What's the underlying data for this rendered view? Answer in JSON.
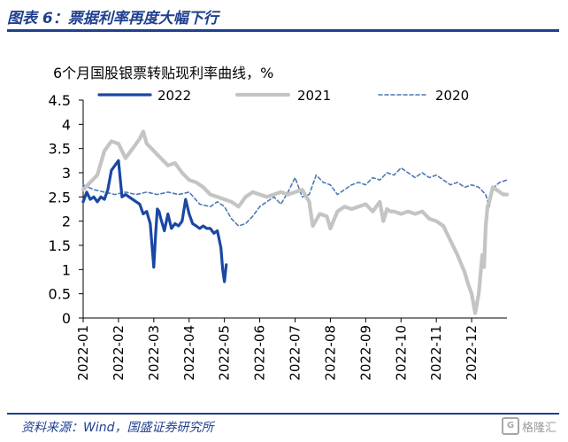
{
  "header": {
    "title": "图表 6：票据利率再度大幅下行"
  },
  "footer": {
    "source": "资料来源：Wind，国盛证券研究所"
  },
  "watermark": {
    "icon": "gelonghui-logo-icon",
    "text": "格隆汇"
  },
  "colors": {
    "s2022": "#1a47a3",
    "s2021": "#c4c4c4",
    "s2020": "#4f78b4",
    "accent": "#1f3f8f"
  },
  "chart_data": {
    "type": "line",
    "ylabel": "6个月国股银票转贴现利率曲线，%",
    "xlabel": "",
    "ylim": [
      0,
      4.5
    ],
    "yticks": [
      "0",
      "0.5",
      "1",
      "1.5",
      "2",
      "2.5",
      "3",
      "3.5",
      "4",
      "4.5"
    ],
    "xlim": [
      0,
      12
    ],
    "xticks": [
      "2022-01",
      "2022-02",
      "2022-03",
      "2022-04",
      "2022-05",
      "2022-06",
      "2022-07",
      "2022-08",
      "2022-09",
      "2022-10",
      "2022-11",
      "2022-12"
    ],
    "legend_position": "top",
    "series": [
      {
        "name": "2022",
        "style": "solid-thick",
        "x": [
          0,
          0.1,
          0.2,
          0.3,
          0.4,
          0.5,
          0.6,
          0.7,
          0.8,
          0.9,
          1.0,
          1.1,
          1.2,
          1.3,
          1.4,
          1.5,
          1.6,
          1.7,
          1.8,
          1.9,
          2.0,
          2.05,
          2.1,
          2.15,
          2.2,
          2.3,
          2.4,
          2.5,
          2.6,
          2.7,
          2.8,
          2.9,
          3.0,
          3.1,
          3.2,
          3.3,
          3.4,
          3.5,
          3.6,
          3.7,
          3.8,
          3.9,
          3.95,
          4.0,
          4.05
        ],
        "values": [
          2.4,
          2.6,
          2.45,
          2.5,
          2.4,
          2.5,
          2.45,
          2.65,
          3.05,
          3.15,
          3.25,
          2.5,
          2.55,
          2.5,
          2.45,
          2.4,
          2.35,
          2.15,
          2.2,
          1.95,
          1.05,
          1.7,
          2.25,
          2.2,
          2.05,
          1.8,
          2.15,
          1.85,
          1.95,
          1.9,
          2.0,
          2.45,
          2.15,
          1.95,
          1.9,
          1.85,
          1.9,
          1.85,
          1.85,
          1.75,
          1.8,
          1.45,
          1.0,
          0.75,
          1.1
        ]
      },
      {
        "name": "2021",
        "style": "solid-light",
        "x": [
          0,
          0.2,
          0.4,
          0.6,
          0.8,
          1.0,
          1.2,
          1.4,
          1.6,
          1.7,
          1.8,
          2.0,
          2.2,
          2.4,
          2.6,
          2.8,
          3.0,
          3.2,
          3.4,
          3.6,
          3.8,
          4.0,
          4.2,
          4.4,
          4.6,
          4.8,
          5.0,
          5.2,
          5.4,
          5.6,
          5.8,
          6.0,
          6.2,
          6.4,
          6.5,
          6.7,
          6.9,
          7.0,
          7.2,
          7.4,
          7.6,
          7.8,
          8.0,
          8.2,
          8.4,
          8.5,
          8.6,
          8.7,
          8.8,
          9.0,
          9.2,
          9.4,
          9.6,
          9.8,
          10.0,
          10.2,
          10.4,
          10.6,
          10.8,
          10.9,
          11.0,
          11.1,
          11.2,
          11.3,
          11.35,
          11.4,
          11.45,
          11.5,
          11.6,
          11.7,
          11.8,
          11.9,
          12.0
        ],
        "values": [
          2.65,
          2.8,
          2.95,
          3.45,
          3.65,
          3.6,
          3.3,
          3.5,
          3.7,
          3.85,
          3.6,
          3.45,
          3.3,
          3.15,
          3.2,
          3.0,
          2.85,
          2.8,
          2.7,
          2.55,
          2.5,
          2.45,
          2.4,
          2.3,
          2.5,
          2.6,
          2.55,
          2.5,
          2.55,
          2.6,
          2.55,
          2.6,
          2.65,
          2.4,
          1.9,
          2.15,
          2.1,
          1.85,
          2.2,
          2.3,
          2.25,
          2.3,
          2.35,
          2.2,
          2.4,
          2.0,
          2.25,
          2.2,
          2.2,
          2.15,
          2.2,
          2.15,
          2.2,
          2.05,
          2.0,
          1.9,
          1.6,
          1.3,
          0.95,
          0.7,
          0.5,
          0.1,
          0.5,
          1.3,
          1.05,
          1.9,
          2.3,
          2.4,
          2.7,
          2.65,
          2.6,
          2.55,
          2.55
        ]
      },
      {
        "name": "2020",
        "style": "dashed",
        "x": [
          0,
          0.3,
          0.6,
          0.9,
          1.2,
          1.5,
          1.8,
          2.1,
          2.4,
          2.7,
          3.0,
          3.3,
          3.6,
          3.8,
          4.0,
          4.2,
          4.4,
          4.6,
          4.8,
          5.0,
          5.2,
          5.4,
          5.6,
          5.8,
          6.0,
          6.2,
          6.4,
          6.6,
          6.8,
          7.0,
          7.2,
          7.4,
          7.6,
          7.8,
          8.0,
          8.2,
          8.4,
          8.6,
          8.8,
          9.0,
          9.2,
          9.4,
          9.6,
          9.8,
          10.0,
          10.2,
          10.4,
          10.6,
          10.8,
          11.0,
          11.2,
          11.4,
          11.5,
          11.6,
          11.7,
          11.8,
          12.0
        ],
        "values": [
          2.75,
          2.65,
          2.6,
          2.55,
          2.6,
          2.55,
          2.6,
          2.55,
          2.6,
          2.55,
          2.6,
          2.35,
          2.3,
          2.4,
          2.3,
          2.05,
          1.9,
          1.95,
          2.1,
          2.3,
          2.4,
          2.5,
          2.35,
          2.6,
          2.9,
          2.5,
          2.55,
          2.95,
          2.8,
          2.75,
          2.55,
          2.65,
          2.75,
          2.8,
          2.75,
          2.9,
          2.85,
          3.0,
          2.95,
          3.1,
          3.0,
          2.9,
          3.0,
          2.9,
          2.95,
          2.85,
          2.75,
          2.8,
          2.7,
          2.75,
          2.7,
          2.55,
          2.3,
          2.65,
          2.75,
          2.8,
          2.85
        ]
      }
    ]
  }
}
